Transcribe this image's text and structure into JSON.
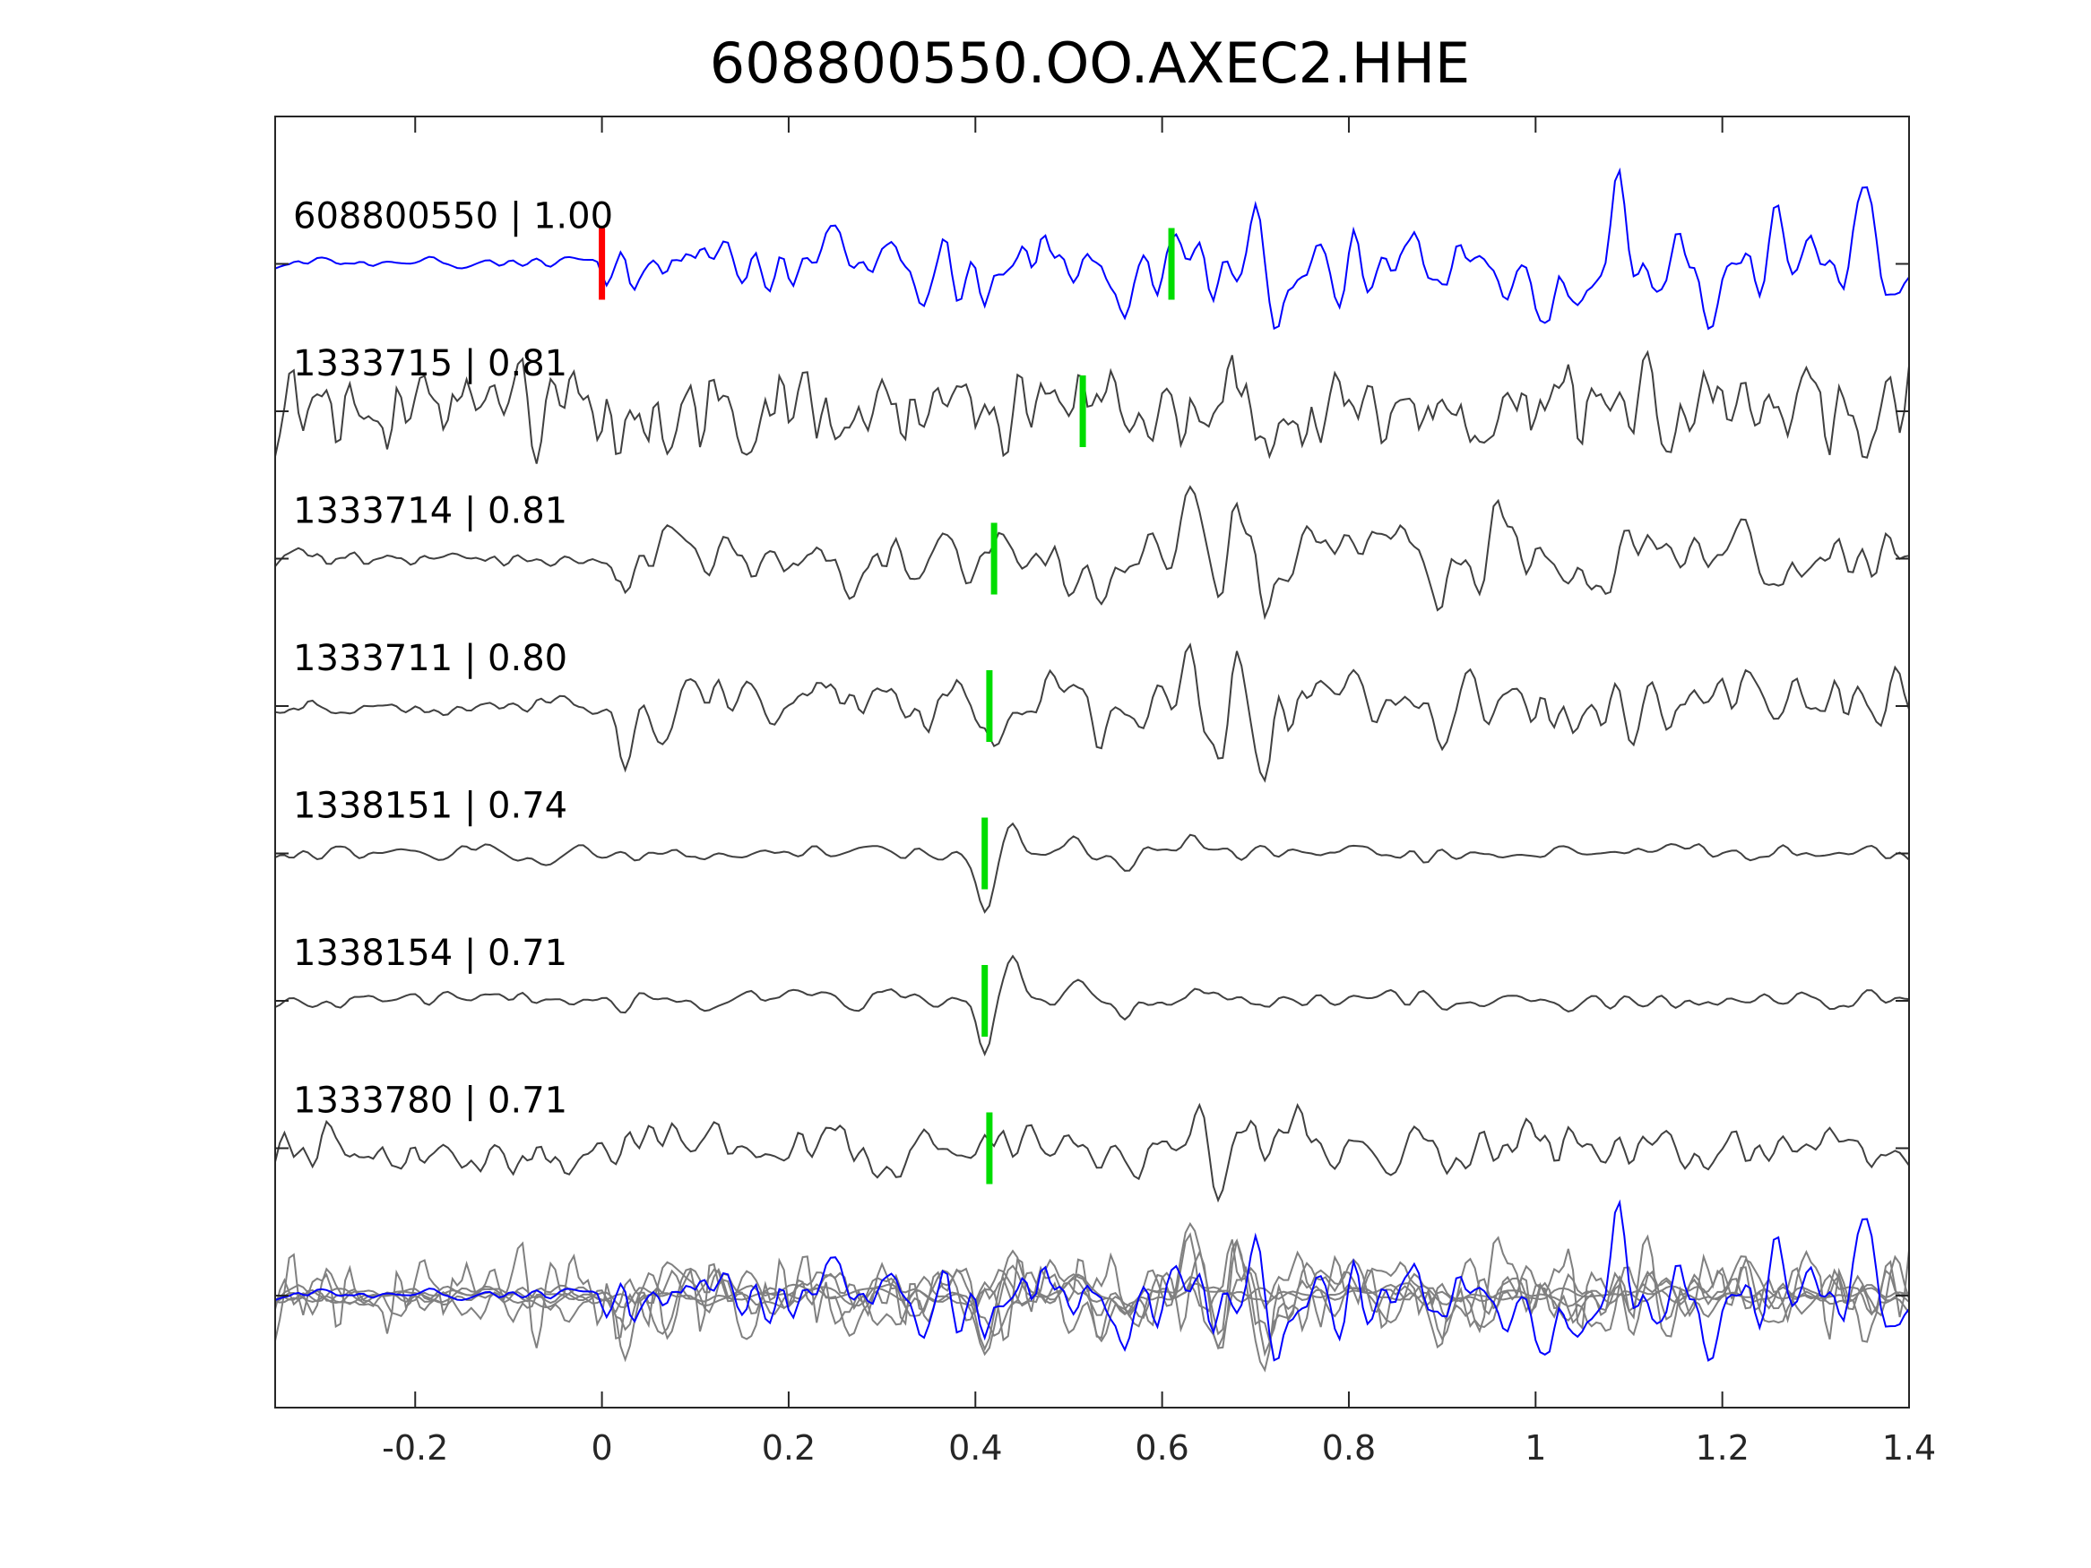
{
  "chart_data": {
    "type": "line",
    "title": "608800550.OO.AXEC2.HHE",
    "xlabel": "",
    "ylabel": "",
    "xlim": [
      -0.35,
      1.4
    ],
    "ylim": [
      -7.76,
      1.0
    ],
    "xticks": [
      -0.2,
      0,
      0.2,
      0.4,
      0.6,
      0.8,
      1,
      1.2,
      1.4
    ],
    "xtick_labels": [
      "-0.2",
      "0",
      "0.2",
      "0.4",
      "0.6",
      "0.8",
      "1",
      "1.2",
      "1.4"
    ],
    "grid": false,
    "colors": {
      "template": "#0000ff",
      "trace": "#404040",
      "stack": "#808080",
      "pick_red": "#ff0000",
      "pick_green": "#00dd00"
    },
    "traces": [
      {
        "label": "608800550 | 1.00",
        "offset": 0,
        "color": "template",
        "seed": 11,
        "pre_amp": 0.03,
        "post_amp": 0.22,
        "onset": 0.0,
        "picks": [
          {
            "t": 0.0,
            "color": "pick_red"
          },
          {
            "t": 0.61,
            "color": "pick_green"
          }
        ],
        "events": [
          [
            0.41,
            -0.35
          ],
          [
            0.56,
            -0.3
          ],
          [
            0.7,
            0.45
          ],
          [
            0.72,
            -0.35
          ],
          [
            1.01,
            -0.4
          ],
          [
            1.09,
            0.45
          ],
          [
            1.19,
            -0.35
          ],
          [
            1.26,
            0.3
          ],
          [
            1.35,
            0.25
          ]
        ],
        "smooth": 2
      },
      {
        "label": "1333715 | 0.81",
        "offset": -1,
        "color": "trace",
        "seed": 23,
        "pre_amp": 0.2,
        "post_amp": 0.25,
        "onset": -0.35,
        "picks": [
          {
            "t": 0.515,
            "color": "pick_green"
          }
        ],
        "events": [
          [
            0.67,
            0.45
          ],
          [
            0.71,
            -0.35
          ],
          [
            0.65,
            -0.3
          ]
        ],
        "smooth": 1
      },
      {
        "label": "1333714 | 0.81",
        "offset": -2,
        "color": "trace",
        "seed": 37,
        "pre_amp": 0.05,
        "post_amp": 0.17,
        "onset": 0.02,
        "picks": [
          {
            "t": 0.42,
            "color": "pick_green"
          }
        ],
        "events": [
          [
            0.025,
            -0.35
          ],
          [
            0.53,
            -0.3
          ],
          [
            0.63,
            0.4
          ],
          [
            0.66,
            -0.35
          ],
          [
            0.68,
            0.4
          ],
          [
            0.71,
            -0.4
          ],
          [
            0.9,
            -0.25
          ],
          [
            0.96,
            0.3
          ]
        ],
        "smooth": 2
      },
      {
        "label": "1333711 | 0.80",
        "offset": -3,
        "color": "trace",
        "seed": 41,
        "pre_amp": 0.05,
        "post_amp": 0.17,
        "onset": 0.02,
        "picks": [
          {
            "t": 0.415,
            "color": "pick_green"
          }
        ],
        "events": [
          [
            0.025,
            -0.3
          ],
          [
            0.53,
            -0.2
          ],
          [
            0.63,
            0.35
          ],
          [
            0.66,
            -0.35
          ],
          [
            0.68,
            0.35
          ],
          [
            0.71,
            -0.4
          ],
          [
            0.9,
            -0.3
          ],
          [
            0.96,
            0.2
          ]
        ],
        "smooth": 2
      },
      {
        "label": "1338151 | 0.74",
        "offset": -4,
        "color": "trace",
        "seed": 53,
        "pre_amp": 0.04,
        "post_amp": 0.05,
        "onset": -0.35,
        "picks": [
          {
            "t": 0.41,
            "color": "pick_green"
          }
        ],
        "events": [
          [
            0.41,
            -0.38
          ],
          [
            0.44,
            0.25
          ],
          [
            0.51,
            0.12
          ],
          [
            0.56,
            -0.1
          ],
          [
            0.63,
            0.1
          ]
        ],
        "smooth": 3
      },
      {
        "label": "1338154 | 0.71",
        "offset": -5,
        "color": "trace",
        "seed": 67,
        "pre_amp": 0.04,
        "post_amp": 0.05,
        "onset": -0.35,
        "picks": [
          {
            "t": 0.41,
            "color": "pick_green"
          }
        ],
        "events": [
          [
            0.41,
            -0.38
          ],
          [
            0.44,
            0.28
          ],
          [
            0.51,
            0.12
          ],
          [
            0.56,
            -0.1
          ],
          [
            0.63,
            0.05
          ]
        ],
        "smooth": 3
      },
      {
        "label": "1333780 | 0.71",
        "offset": -6,
        "color": "trace",
        "seed": 79,
        "pre_amp": 0.1,
        "post_amp": 0.13,
        "onset": -0.35,
        "picks": [
          {
            "t": 0.415,
            "color": "pick_green"
          }
        ],
        "events": [
          [
            0.64,
            0.4
          ],
          [
            0.66,
            -0.3
          ],
          [
            0.7,
            0.25
          ],
          [
            0.71,
            -0.25
          ],
          [
            0.75,
            0.2
          ],
          [
            0.91,
            -0.2
          ]
        ],
        "smooth": 2
      }
    ],
    "stack": {
      "offset": -7
    }
  }
}
